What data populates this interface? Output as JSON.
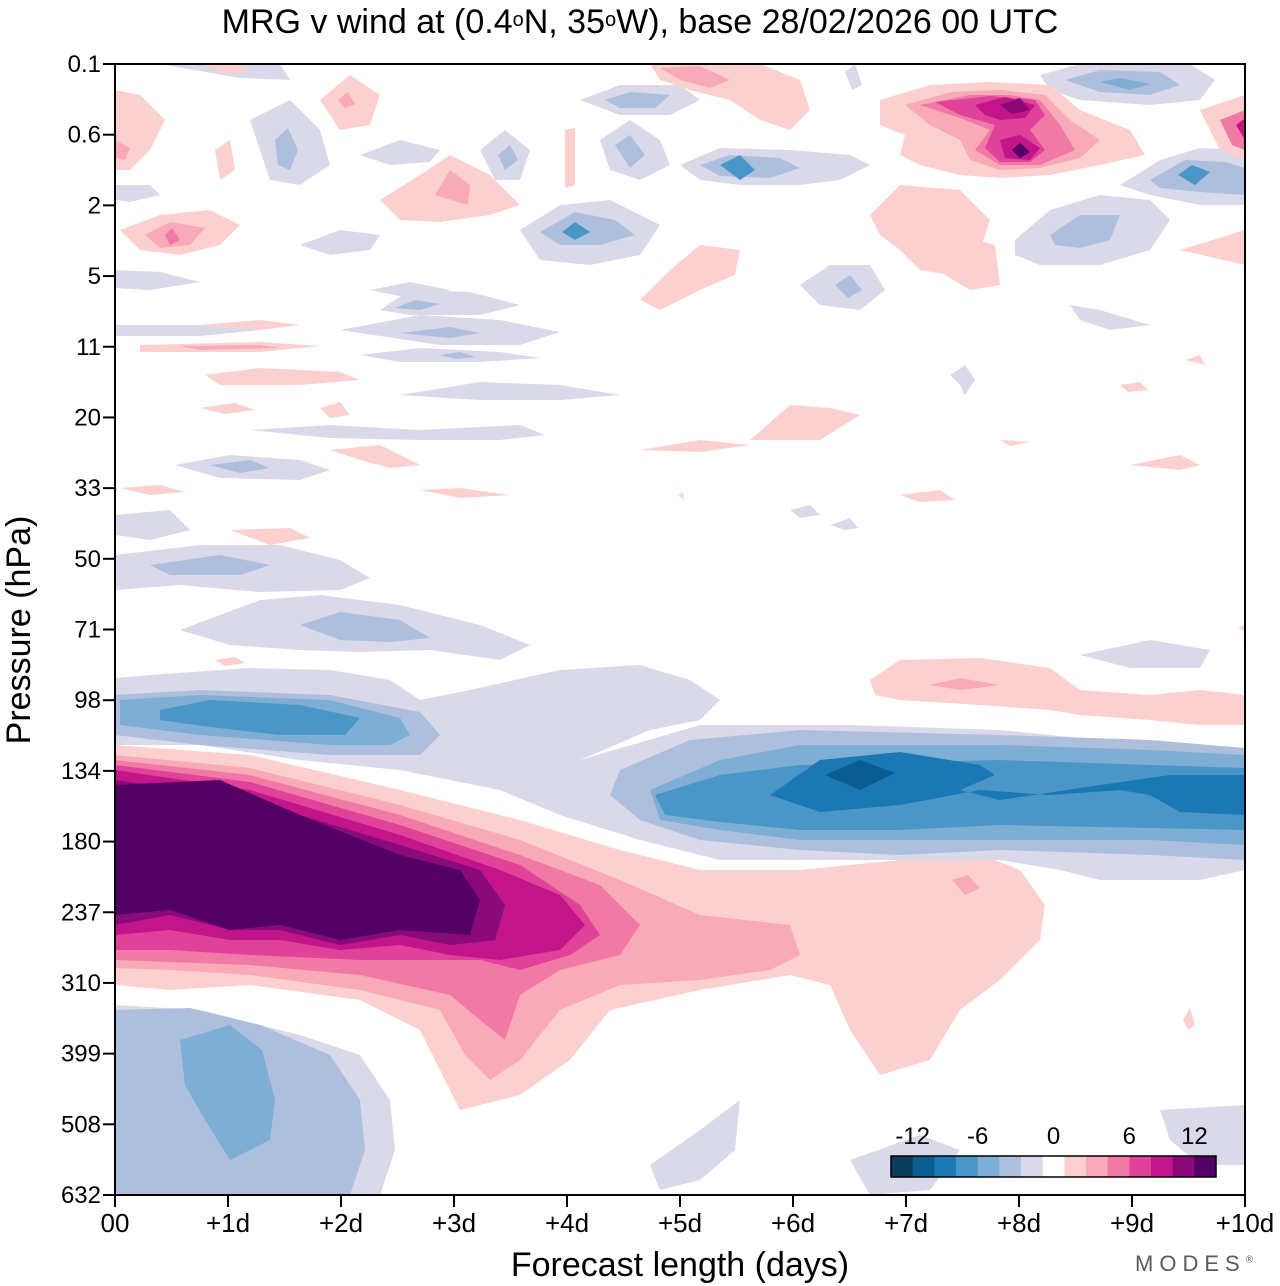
{
  "title": {
    "prefix": "MRG v wind at (0.4",
    "deg1": "o",
    "mid": "N, 35",
    "deg2": "o",
    "suffix": "W),  base 28/02/2026  00 UTC"
  },
  "logo": {
    "text": "MODES",
    "mark": "®"
  },
  "chart_data": {
    "type": "heatmap",
    "title": "MRG v wind at (0.4°N, 35°W),  base 28/02/2026  00 UTC",
    "xlabel": "Forecast length (days)",
    "ylabel": "Pressure (hPa)",
    "x_ticks": [
      "00",
      "+1d",
      "+2d",
      "+3d",
      "+4d",
      "+5d",
      "+6d",
      "+7d",
      "+8d",
      "+9d",
      "+10d"
    ],
    "y_ticks": [
      "0.1",
      "0.6",
      "2",
      "5",
      "11",
      "20",
      "33",
      "50",
      "71",
      "98",
      "134",
      "180",
      "237",
      "310",
      "399",
      "508",
      "632"
    ],
    "xlim_days": [
      0,
      10
    ],
    "colorbar": {
      "labels": [
        "-12",
        "-6",
        "0",
        "6",
        "12"
      ],
      "levels": [
        -15,
        -12,
        -10,
        -8,
        -6,
        -4,
        -2,
        0,
        2,
        4,
        6,
        8,
        10,
        12,
        15
      ],
      "colors": [
        "#0b3d5c",
        "#0b5c8f",
        "#1a78b4",
        "#4a96c6",
        "#7eaed3",
        "#aebfde",
        "#d9d9ea",
        "#ffffff",
        "#fdd0d0",
        "#f8aab8",
        "#f07aa5",
        "#e0429a",
        "#c21589",
        "#8b0a7a",
        "#520066"
      ]
    },
    "features": [
      {
        "name": "upper-troposphere positive maximum",
        "days": [
          0,
          4.5
        ],
        "pressure_hPa": [
          140,
          300
        ],
        "value": ">15"
      },
      {
        "name": "lower stratosphere negative band",
        "days": [
          4.5,
          10
        ],
        "pressure_hPa": [
          110,
          200
        ],
        "value": "-12"
      },
      {
        "name": "near-tropopause negative",
        "days": [
          0.3,
          2.8
        ],
        "pressure_hPa": [
          90,
          120
        ],
        "value": "-8"
      },
      {
        "name": "lower troposphere negative",
        "days": [
          0,
          2.5
        ],
        "pressure_hPa": [
          330,
          632
        ],
        "value": "-6"
      },
      {
        "name": "upper stratosphere positive",
        "days": [
          7.2,
          8.8
        ],
        "pressure_hPa": [
          0.3,
          1.2
        ],
        "value": "12"
      }
    ]
  }
}
